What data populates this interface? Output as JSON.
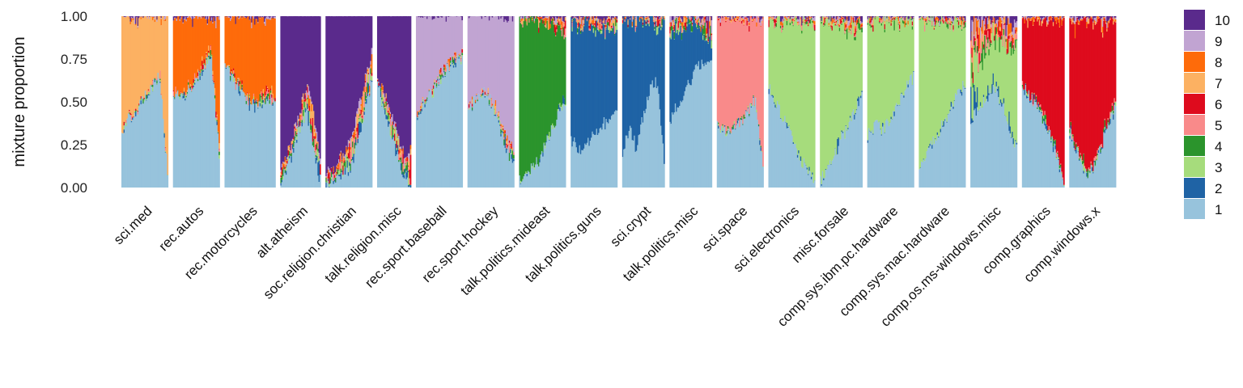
{
  "chart_data": {
    "type": "stacked-bar-facet",
    "ylabel": "mixture proportion",
    "ylim": [
      0,
      1
    ],
    "yticks": [
      "0.00",
      "0.25",
      "0.50",
      "0.75",
      "1.00"
    ],
    "colors": {
      "1": "#97c3dc",
      "2": "#1f63a5",
      "3": "#a6dc7c",
      "4": "#2b942c",
      "5": "#f98a8a",
      "6": "#de0b1d",
      "7": "#fcb162",
      "8": "#fe6b0a",
      "9": "#c1a4d2",
      "10": "#5a2a8c"
    },
    "legend": {
      "position": "right",
      "entries": [
        "10",
        "9",
        "8",
        "7",
        "6",
        "5",
        "4",
        "3",
        "2",
        "1"
      ]
    },
    "panels": [
      {
        "label": "sci.med",
        "n": 44,
        "c1": [
          0.32,
          0.41,
          0.45,
          0.53,
          0.59,
          0.66,
          0.08
        ],
        "second": "7",
        "c2": [
          0.68,
          0.56,
          0.52,
          0.45,
          0.38,
          0.32,
          0.9
        ]
      },
      {
        "label": "rec.autos",
        "n": 44,
        "c1": [
          0.54,
          0.52,
          0.56,
          0.62,
          0.7,
          0.74,
          0.2
        ],
        "second": "8",
        "c2": [
          0.44,
          0.45,
          0.4,
          0.34,
          0.25,
          0.16,
          0.76
        ]
      },
      {
        "label": "rec.motorcycles",
        "n": 48,
        "c1": [
          0.7,
          0.62,
          0.55,
          0.48,
          0.47,
          0.52,
          0.5
        ],
        "second": "8",
        "c2": [
          0.28,
          0.34,
          0.4,
          0.47,
          0.47,
          0.4,
          0.44
        ]
      },
      {
        "label": "alt.atheism",
        "n": 38,
        "c1": [
          0.04,
          0.12,
          0.22,
          0.35,
          0.44,
          0.24,
          0.04
        ],
        "second": "10",
        "c2": [
          0.92,
          0.8,
          0.68,
          0.54,
          0.4,
          0.55,
          0.82
        ]
      },
      {
        "label": "soc.religion.christian",
        "n": 44,
        "c1": [
          0.02,
          0.04,
          0.06,
          0.1,
          0.22,
          0.42,
          0.62
        ],
        "second": "10",
        "c2": [
          0.92,
          0.9,
          0.82,
          0.72,
          0.58,
          0.38,
          0.22
        ]
      },
      {
        "label": "talk.religion.misc",
        "n": 32,
        "c1": [
          0.62,
          0.45,
          0.33,
          0.18,
          0.08,
          0.02
        ],
        "second": "10",
        "c2": [
          0.34,
          0.46,
          0.54,
          0.7,
          0.8,
          0.78
        ]
      },
      {
        "label": "rec.sport.baseball",
        "n": 44,
        "c1": [
          0.4,
          0.5,
          0.55,
          0.62,
          0.7,
          0.73,
          0.76
        ],
        "second": "9",
        "c2": [
          0.58,
          0.48,
          0.42,
          0.34,
          0.26,
          0.22,
          0.2
        ]
      },
      {
        "label": "rec.sport.hockey",
        "n": 44,
        "c1": [
          0.44,
          0.52,
          0.56,
          0.5,
          0.38,
          0.24,
          0.12
        ],
        "second": "9",
        "c2": [
          0.54,
          0.46,
          0.4,
          0.46,
          0.56,
          0.68,
          0.76
        ]
      },
      {
        "label": "talk.politics.mideast",
        "n": 44,
        "c1": [
          0.04,
          0.08,
          0.12,
          0.2,
          0.32,
          0.42,
          0.48
        ],
        "second": "4",
        "c2": [
          0.94,
          0.9,
          0.84,
          0.76,
          0.62,
          0.48,
          0.36
        ]
      },
      {
        "label": "talk.politics.guns",
        "n": 44,
        "c1": [
          0.28,
          0.22,
          0.26,
          0.32,
          0.36,
          0.4,
          0.44
        ],
        "second": "2",
        "c2": [
          0.66,
          0.74,
          0.72,
          0.62,
          0.58,
          0.54,
          0.46
        ]
      },
      {
        "label": "sci.crypt",
        "n": 40,
        "c1": [
          0.2,
          0.36,
          0.22,
          0.42,
          0.58,
          0.62,
          0.16
        ],
        "second": "2",
        "c2": [
          0.78,
          0.62,
          0.76,
          0.56,
          0.4,
          0.3,
          0.8
        ]
      },
      {
        "label": "talk.politics.misc",
        "n": 40,
        "c1": [
          0.38,
          0.48,
          0.56,
          0.62,
          0.7,
          0.74,
          0.78
        ],
        "second": "2",
        "c2": [
          0.48,
          0.44,
          0.38,
          0.32,
          0.24,
          0.14,
          0.1
        ]
      },
      {
        "label": "sci.space",
        "n": 44,
        "c1": [
          0.36,
          0.32,
          0.34,
          0.38,
          0.44,
          0.5,
          0.12
        ],
        "second": "5",
        "c2": [
          0.62,
          0.66,
          0.62,
          0.58,
          0.52,
          0.46,
          0.84
        ]
      },
      {
        "label": "sci.electronics",
        "n": 44,
        "c1": [
          0.58,
          0.48,
          0.4,
          0.3,
          0.18,
          0.1,
          0.02
        ],
        "second": "3",
        "c2": [
          0.4,
          0.48,
          0.56,
          0.66,
          0.78,
          0.86,
          0.9
        ]
      },
      {
        "label": "misc.forsale",
        "n": 40,
        "c1": [
          0.04,
          0.1,
          0.18,
          0.28,
          0.36,
          0.44,
          0.52
        ],
        "second": "3",
        "c2": [
          0.92,
          0.86,
          0.76,
          0.64,
          0.56,
          0.46,
          0.38
        ]
      },
      {
        "label": "comp.sys.ibm.pc.hardware",
        "n": 44,
        "c1": [
          0.3,
          0.36,
          0.34,
          0.4,
          0.5,
          0.58,
          0.64
        ],
        "second": "3",
        "c2": [
          0.66,
          0.6,
          0.62,
          0.56,
          0.46,
          0.38,
          0.32
        ]
      },
      {
        "label": "comp.sys.mac.hardware",
        "n": 44,
        "c1": [
          0.14,
          0.2,
          0.28,
          0.36,
          0.44,
          0.54,
          0.6
        ],
        "second": "3",
        "c2": [
          0.84,
          0.76,
          0.68,
          0.6,
          0.5,
          0.4,
          0.36
        ]
      },
      {
        "label": "comp.os.ms-windows.misc",
        "n": 44,
        "c1": [
          0.4,
          0.46,
          0.52,
          0.58,
          0.5,
          0.36,
          0.22
        ],
        "second": "3",
        "c2": [
          0.22,
          0.24,
          0.26,
          0.26,
          0.34,
          0.44,
          0.56
        ]
      },
      {
        "label": "comp.graphics",
        "n": 40,
        "c1": [
          0.6,
          0.52,
          0.48,
          0.4,
          0.3,
          0.18,
          0.02
        ],
        "second": "6",
        "c2": [
          0.38,
          0.44,
          0.46,
          0.54,
          0.64,
          0.74,
          0.94
        ]
      },
      {
        "label": "comp.windows.x",
        "n": 44,
        "c1": [
          0.32,
          0.2,
          0.08,
          0.1,
          0.22,
          0.36,
          0.46
        ],
        "second": "6",
        "c2": [
          0.6,
          0.72,
          0.86,
          0.86,
          0.7,
          0.56,
          0.46
        ]
      }
    ]
  }
}
